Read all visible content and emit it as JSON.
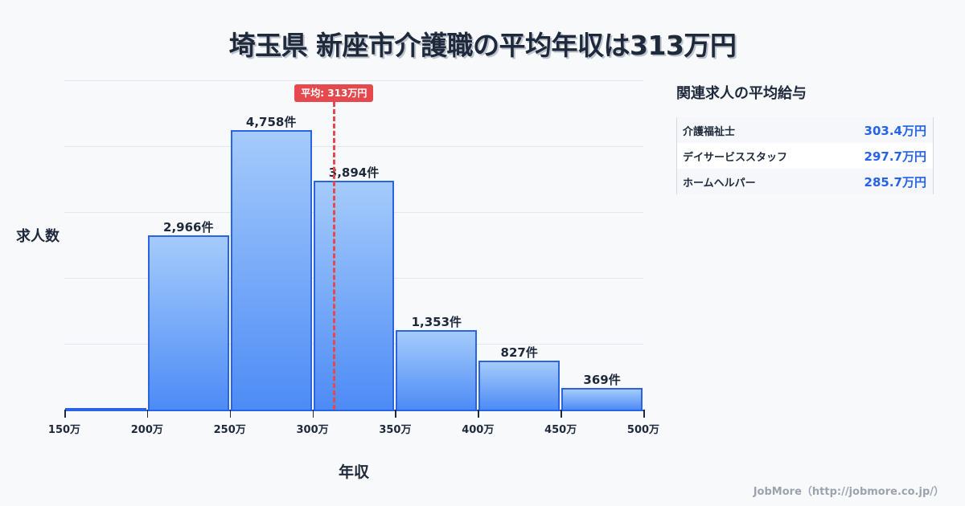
{
  "title": "埼玉県 新座市介護職の平均年収は313万円",
  "chart_data": {
    "type": "bar",
    "title": "埼玉県 新座市介護職の平均年収は313万円",
    "xlabel": "年収",
    "ylabel": "求人数",
    "categories": [
      "150-200万",
      "200-250万",
      "250-300万",
      "300-350万",
      "350-400万",
      "400-450万",
      "450-500万"
    ],
    "bin_edges": [
      150,
      200,
      250,
      300,
      350,
      400,
      450,
      500
    ],
    "values": [
      25,
      2966,
      4758,
      3894,
      1353,
      827,
      369
    ],
    "value_labels": [
      "",
      "2,966件",
      "4,758件",
      "3,894件",
      "1,353件",
      "827件",
      "369件"
    ],
    "x_tick_labels": [
      "150万",
      "200万",
      "250万",
      "300万",
      "350万",
      "400万",
      "450万",
      "500万"
    ],
    "xlim": [
      150,
      500
    ],
    "ylim": [
      0,
      5600
    ],
    "grid": true,
    "mean": {
      "value": 313,
      "label": "平均: 313万円",
      "color": "#e5484d"
    },
    "bar_color_top": "#a5cbfb",
    "bar_color_bottom": "#4d8bf5",
    "bar_border": "#2b63e0"
  },
  "side_panel": {
    "title": "関連求人の平均給与",
    "rows": [
      {
        "name": "介護福祉士",
        "value": "303.4万円"
      },
      {
        "name": "デイサービススタッフ",
        "value": "297.7万円"
      },
      {
        "name": "ホームヘルパー",
        "value": "285.7万円"
      }
    ]
  },
  "footer": "JobMore（http://jobmore.co.jp/）"
}
